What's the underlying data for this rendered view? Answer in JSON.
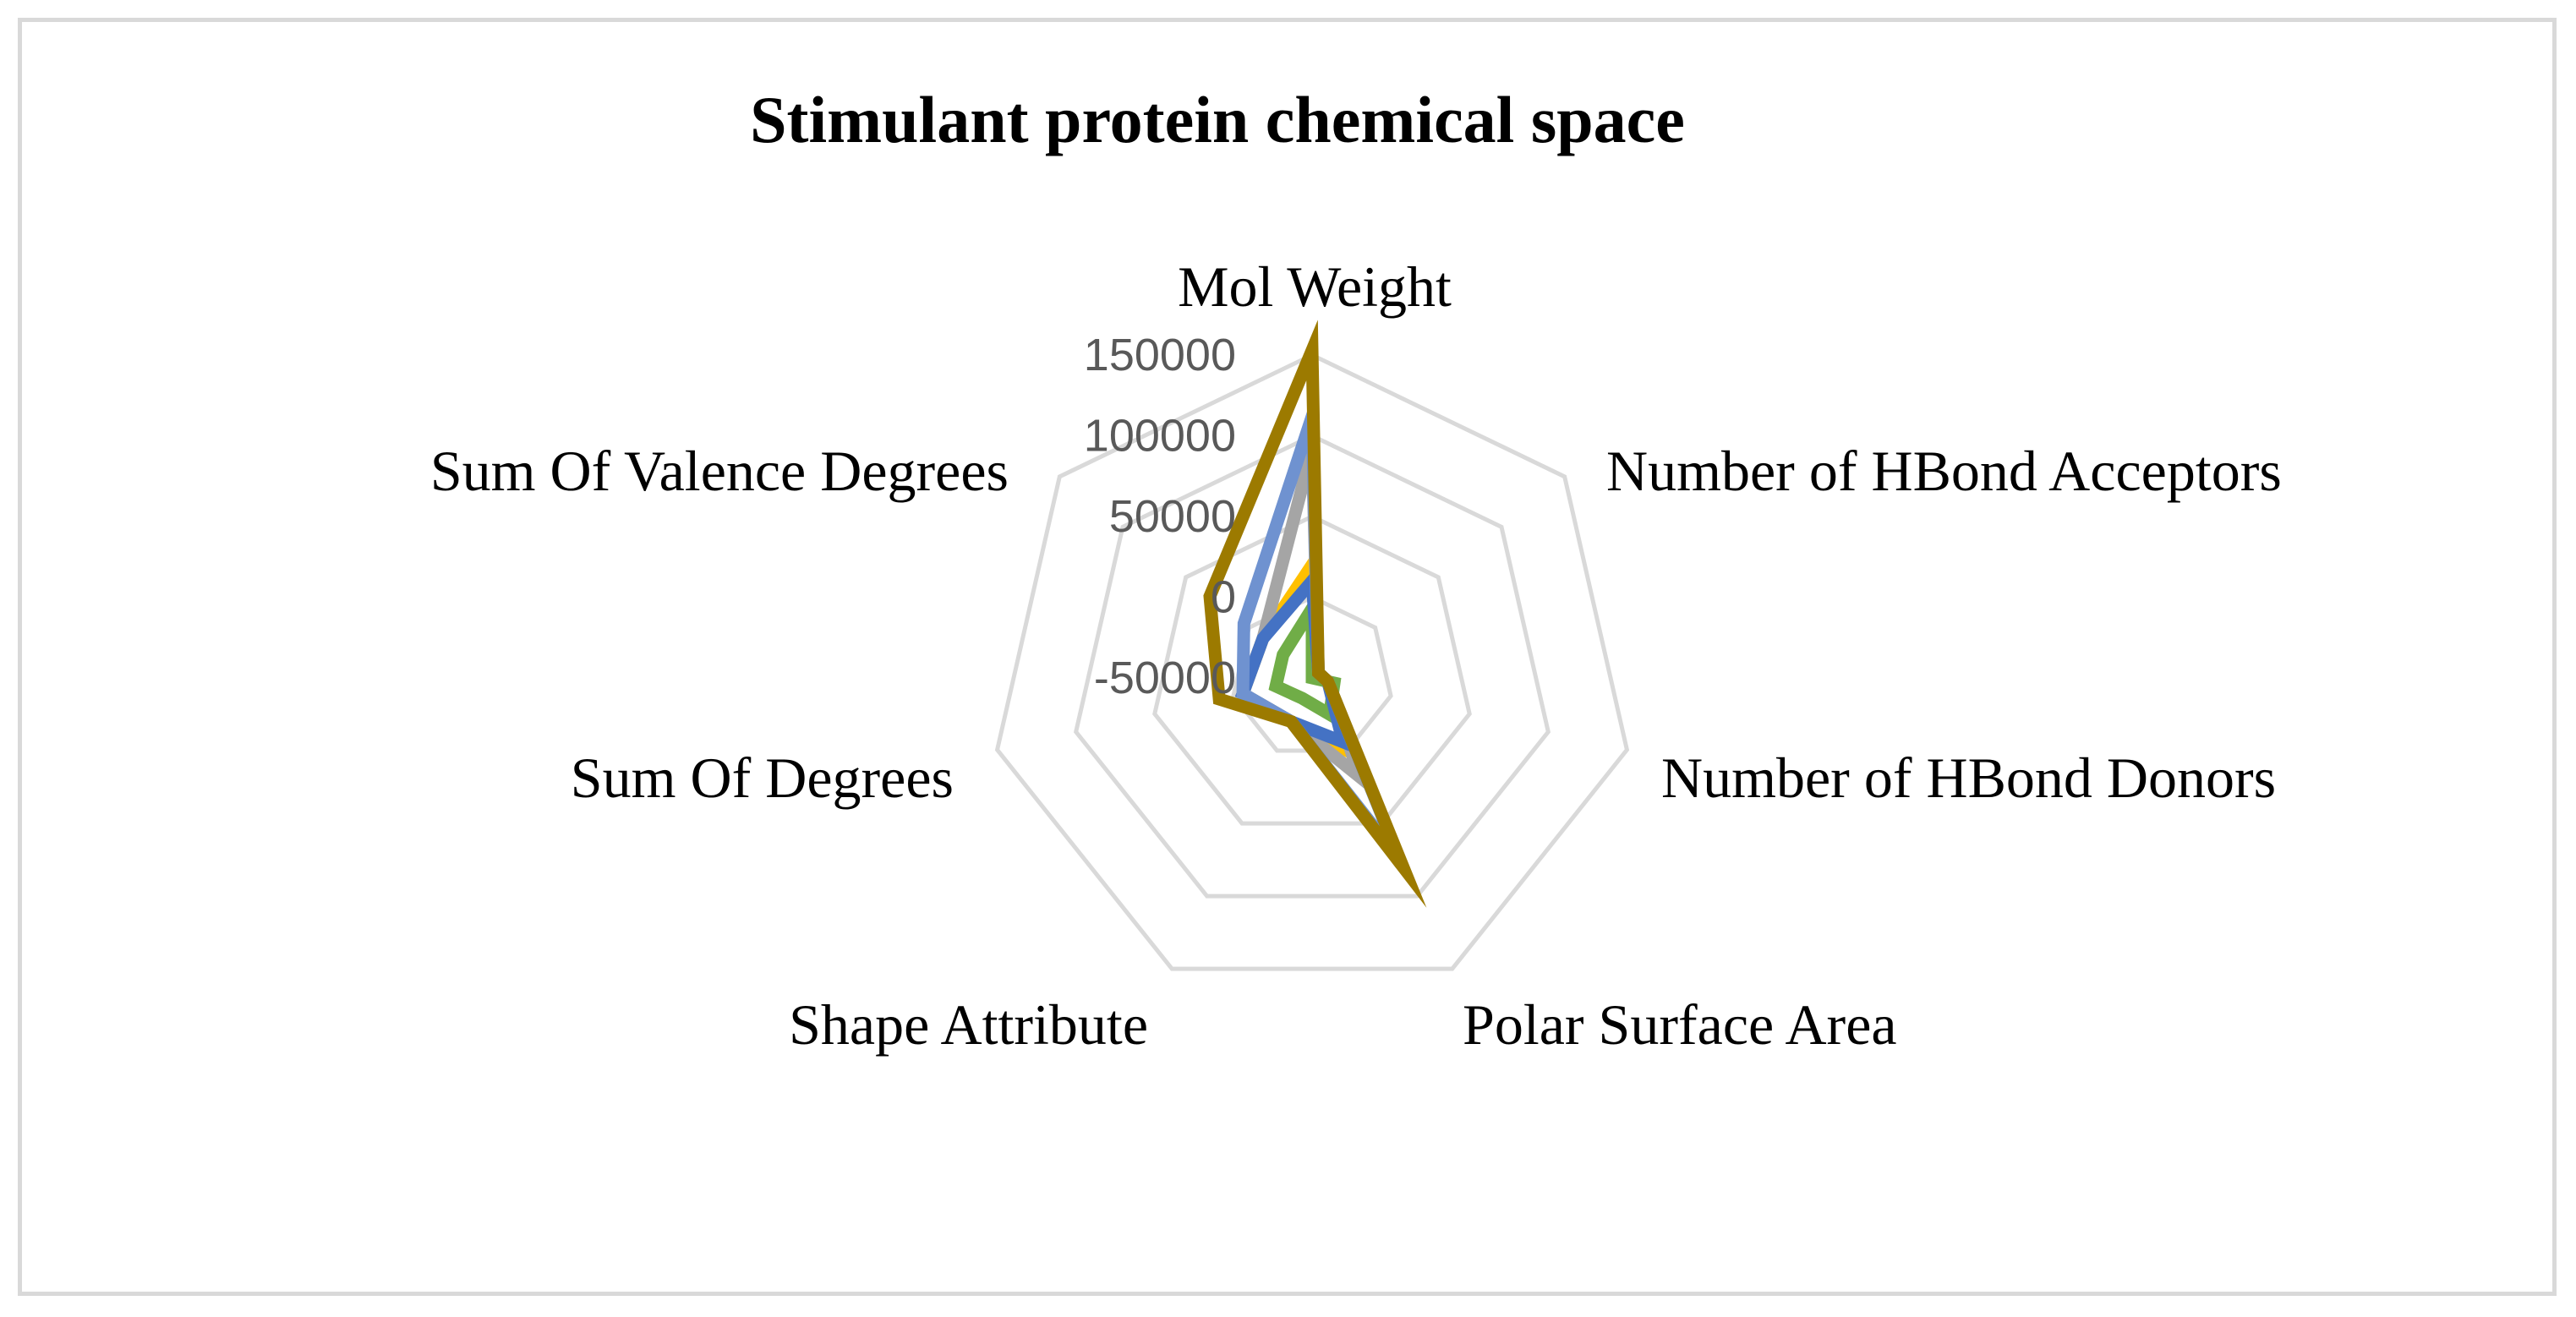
{
  "chart_data": {
    "type": "radar",
    "title": "Stimulant protein chemical space",
    "axes": [
      "Mol Weight",
      "Number of HBond Acceptors",
      "Number of HBond Donors",
      "Polar Surface Area",
      "Shape Attribute",
      "Sum Of Degrees",
      "Sum Of Valence Degrees"
    ],
    "r_ticks": [
      "150000",
      "100000",
      "50000",
      "0",
      "-50000"
    ],
    "rlim": [
      -50000,
      150000
    ],
    "grid": true,
    "legend": "none",
    "series": [
      {
        "color": "#70ad47",
        "values": [
          -7000,
          -50000,
          -36000,
          -25000,
          -36000,
          -27000,
          -27000
        ]
      },
      {
        "color": "#ffc000",
        "values": [
          20000,
          -45000,
          -40000,
          0,
          -20000,
          -6000,
          -11000
        ]
      },
      {
        "color": "#a5a5a5",
        "values": [
          92000,
          -45000,
          -40000,
          18000,
          -20000,
          -6000,
          -11000
        ]
      },
      {
        "color": "#4472c4",
        "values": [
          10000,
          -45000,
          -40000,
          -6000,
          -20000,
          -6000,
          -11000
        ]
      },
      {
        "color": "#6f92d0",
        "values": [
          112000,
          -45000,
          -40000,
          75000,
          -20000,
          -6000,
          4000
        ]
      },
      {
        "color": "#9c7a00",
        "values": [
          153000,
          -45000,
          -40000,
          80000,
          -20000,
          9000,
          31000
        ]
      }
    ]
  }
}
